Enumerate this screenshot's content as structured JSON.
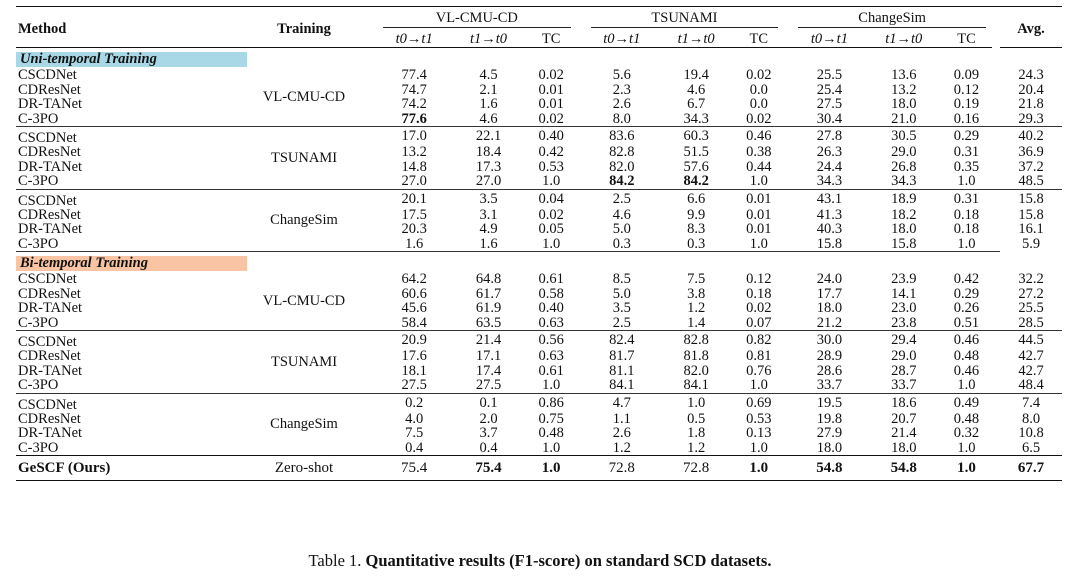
{
  "header": {
    "method": "Method",
    "training": "Training",
    "avg": "Avg.",
    "datasets": [
      "VL-CMU-CD",
      "TSUNAMI",
      "ChangeSim"
    ],
    "sub": [
      {
        "a": "t0",
        "arrow": "→",
        "b": "t1"
      },
      {
        "a": "t1",
        "arrow": "→",
        "b": "t0"
      },
      {
        "label": "TC"
      }
    ]
  },
  "sections": [
    {
      "title": "Uni-temporal Training",
      "color": "#a8d8e6",
      "groups": [
        {
          "training": "VL-CMU-CD",
          "rows": [
            {
              "method": "CSCDNet",
              "v": [
                "77.4",
                "4.5",
                "0.02",
                "5.6",
                "19.4",
                "0.02",
                "25.5",
                "13.6",
                "0.09",
                "24.3"
              ],
              "bold": []
            },
            {
              "method": "CDResNet",
              "v": [
                "74.7",
                "2.1",
                "0.01",
                "2.3",
                "4.6",
                "0.0",
                "25.4",
                "13.2",
                "0.12",
                "20.4"
              ],
              "bold": []
            },
            {
              "method": "DR-TANet",
              "v": [
                "74.2",
                "1.6",
                "0.01",
                "2.6",
                "6.7",
                "0.0",
                "27.5",
                "18.0",
                "0.19",
                "21.8"
              ],
              "bold": []
            },
            {
              "method": "C-3PO",
              "v": [
                "77.6",
                "4.6",
                "0.02",
                "8.0",
                "34.3",
                "0.02",
                "30.4",
                "21.0",
                "0.16",
                "29.3"
              ],
              "bold": [
                0
              ]
            }
          ]
        },
        {
          "training": "TSUNAMI",
          "rows": [
            {
              "method": "CSCDNet",
              "v": [
                "17.0",
                "22.1",
                "0.40",
                "83.6",
                "60.3",
                "0.46",
                "27.8",
                "30.5",
                "0.29",
                "40.2"
              ],
              "bold": []
            },
            {
              "method": "CDResNet",
              "v": [
                "13.2",
                "18.4",
                "0.42",
                "82.8",
                "51.5",
                "0.38",
                "26.3",
                "29.0",
                "0.31",
                "36.9"
              ],
              "bold": []
            },
            {
              "method": "DR-TANet",
              "v": [
                "14.8",
                "17.3",
                "0.53",
                "82.0",
                "57.6",
                "0.44",
                "24.4",
                "26.8",
                "0.35",
                "37.2"
              ],
              "bold": []
            },
            {
              "method": "C-3PO",
              "v": [
                "27.0",
                "27.0",
                "1.0",
                "84.2",
                "84.2",
                "1.0",
                "34.3",
                "34.3",
                "1.0",
                "48.5"
              ],
              "bold": [
                3,
                4
              ]
            }
          ]
        },
        {
          "training": "ChangeSim",
          "rows": [
            {
              "method": "CSCDNet",
              "v": [
                "20.1",
                "3.5",
                "0.04",
                "2.5",
                "6.6",
                "0.01",
                "43.1",
                "18.9",
                "0.31",
                "15.8"
              ],
              "bold": []
            },
            {
              "method": "CDResNet",
              "v": [
                "17.5",
                "3.1",
                "0.02",
                "4.6",
                "9.9",
                "0.01",
                "41.3",
                "18.2",
                "0.18",
                "15.8"
              ],
              "bold": []
            },
            {
              "method": "DR-TANet",
              "v": [
                "20.3",
                "4.9",
                "0.05",
                "5.0",
                "8.3",
                "0.01",
                "40.3",
                "18.0",
                "0.18",
                "16.1"
              ],
              "bold": []
            },
            {
              "method": "C-3PO",
              "v": [
                "1.6",
                "1.6",
                "1.0",
                "0.3",
                "0.3",
                "1.0",
                "15.8",
                "15.8",
                "1.0",
                "5.9"
              ],
              "bold": []
            }
          ]
        }
      ]
    },
    {
      "title": "Bi-temporal Training",
      "color": "#f8c4a4",
      "groups": [
        {
          "training": "VL-CMU-CD",
          "rows": [
            {
              "method": "CSCDNet",
              "v": [
                "64.2",
                "64.8",
                "0.61",
                "8.5",
                "7.5",
                "0.12",
                "24.0",
                "23.9",
                "0.42",
                "32.2"
              ],
              "bold": []
            },
            {
              "method": "CDResNet",
              "v": [
                "60.6",
                "61.7",
                "0.58",
                "5.0",
                "3.8",
                "0.18",
                "17.7",
                "14.1",
                "0.29",
                "27.2"
              ],
              "bold": []
            },
            {
              "method": "DR-TANet",
              "v": [
                "45.6",
                "61.9",
                "0.40",
                "3.5",
                "1.2",
                "0.02",
                "18.0",
                "23.0",
                "0.26",
                "25.5"
              ],
              "bold": []
            },
            {
              "method": "C-3PO",
              "v": [
                "58.4",
                "63.5",
                "0.63",
                "2.5",
                "1.4",
                "0.07",
                "21.2",
                "23.8",
                "0.51",
                "28.5"
              ],
              "bold": []
            }
          ]
        },
        {
          "training": "TSUNAMI",
          "rows": [
            {
              "method": "CSCDNet",
              "v": [
                "20.9",
                "21.4",
                "0.56",
                "82.4",
                "82.8",
                "0.82",
                "30.0",
                "29.4",
                "0.46",
                "44.5"
              ],
              "bold": []
            },
            {
              "method": "CDResNet",
              "v": [
                "17.6",
                "17.1",
                "0.63",
                "81.7",
                "81.8",
                "0.81",
                "28.9",
                "29.0",
                "0.48",
                "42.7"
              ],
              "bold": []
            },
            {
              "method": "DR-TANet",
              "v": [
                "18.1",
                "17.4",
                "0.61",
                "81.1",
                "82.0",
                "0.76",
                "28.6",
                "28.7",
                "0.46",
                "42.7"
              ],
              "bold": []
            },
            {
              "method": "C-3PO",
              "v": [
                "27.5",
                "27.5",
                "1.0",
                "84.1",
                "84.1",
                "1.0",
                "33.7",
                "33.7",
                "1.0",
                "48.4"
              ],
              "bold": []
            }
          ]
        },
        {
          "training": "ChangeSim",
          "rows": [
            {
              "method": "CSCDNet",
              "v": [
                "0.2",
                "0.1",
                "0.86",
                "4.7",
                "1.0",
                "0.69",
                "19.5",
                "18.6",
                "0.49",
                "7.4"
              ],
              "bold": []
            },
            {
              "method": "CDResNet",
              "v": [
                "4.0",
                "2.0",
                "0.75",
                "1.1",
                "0.5",
                "0.53",
                "19.8",
                "20.7",
                "0.48",
                "8.0"
              ],
              "bold": []
            },
            {
              "method": "DR-TANet",
              "v": [
                "7.5",
                "3.7",
                "0.48",
                "2.6",
                "1.8",
                "0.13",
                "27.9",
                "21.4",
                "0.32",
                "10.8"
              ],
              "bold": []
            },
            {
              "method": "C-3PO",
              "v": [
                "0.4",
                "0.4",
                "1.0",
                "1.2",
                "1.2",
                "1.0",
                "18.0",
                "18.0",
                "1.0",
                "6.5"
              ],
              "bold": []
            }
          ]
        }
      ]
    }
  ],
  "final": {
    "method": "GeSCF (Ours)",
    "training": "Zero-shot",
    "v": [
      "75.4",
      "75.4",
      "1.0",
      "72.8",
      "72.8",
      "1.0",
      "54.8",
      "54.8",
      "1.0",
      "67.7"
    ],
    "bold": [
      1,
      2,
      5,
      6,
      7,
      8,
      9
    ]
  },
  "caption": {
    "prefix": "Table 1.",
    "bold": "Quantitative results (F1-score) on standard SCD datasets."
  }
}
